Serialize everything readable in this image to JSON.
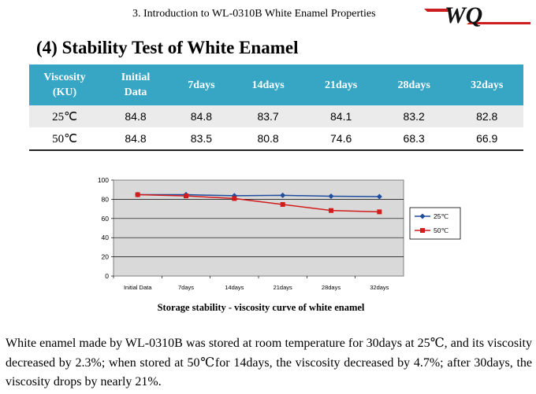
{
  "header": {
    "text": "3. Introduction to WL-0310B White Enamel Properties",
    "logo_text": "WQ",
    "logo_colors": {
      "red": "#cc1e1e",
      "black": "#111111"
    }
  },
  "section": {
    "title": "(4) Stability Test of White Enamel"
  },
  "table": {
    "columns": [
      "Viscosity",
      "(KU)",
      "Initial",
      "Data",
      "7days",
      "14days",
      "21days",
      "28days",
      "32days"
    ],
    "rows": [
      {
        "label": "25℃",
        "values": [
          "84.8",
          "84.8",
          "83.7",
          "84.1",
          "83.2",
          "82.8"
        ]
      },
      {
        "label": "50℃",
        "values": [
          "84.8",
          "83.5",
          "80.8",
          "74.6",
          "68.3",
          "66.9"
        ]
      }
    ],
    "header_color": "#36a6c4"
  },
  "chart_data": {
    "type": "line",
    "categories": [
      "Initial Data",
      "7days",
      "14days",
      "21days",
      "28days",
      "32days"
    ],
    "series": [
      {
        "name": "25℃",
        "values": [
          84.8,
          84.8,
          83.7,
          84.1,
          83.2,
          82.8
        ],
        "color": "#1f4e9e",
        "marker": "diamond"
      },
      {
        "name": "50℃",
        "values": [
          84.8,
          83.5,
          80.8,
          74.6,
          68.3,
          66.9
        ],
        "color": "#d21c1c",
        "marker": "square"
      }
    ],
    "yticks": [
      "0",
      "20",
      "40",
      "60",
      "80",
      "100"
    ],
    "ylim": [
      0,
      100
    ],
    "grid": true,
    "legend": "right",
    "title": "Storage stability - viscosity curve of white enamel",
    "plot_background": "#d9d9d9"
  },
  "body_text": "White enamel made by WL-0310B was stored at room temperature for 30days at 25℃, and its viscosity decreased by 2.3%; when stored at 50℃for 14days, the viscosity decreased by 4.7%; after 30days, the viscosity drops by nearly 21%."
}
